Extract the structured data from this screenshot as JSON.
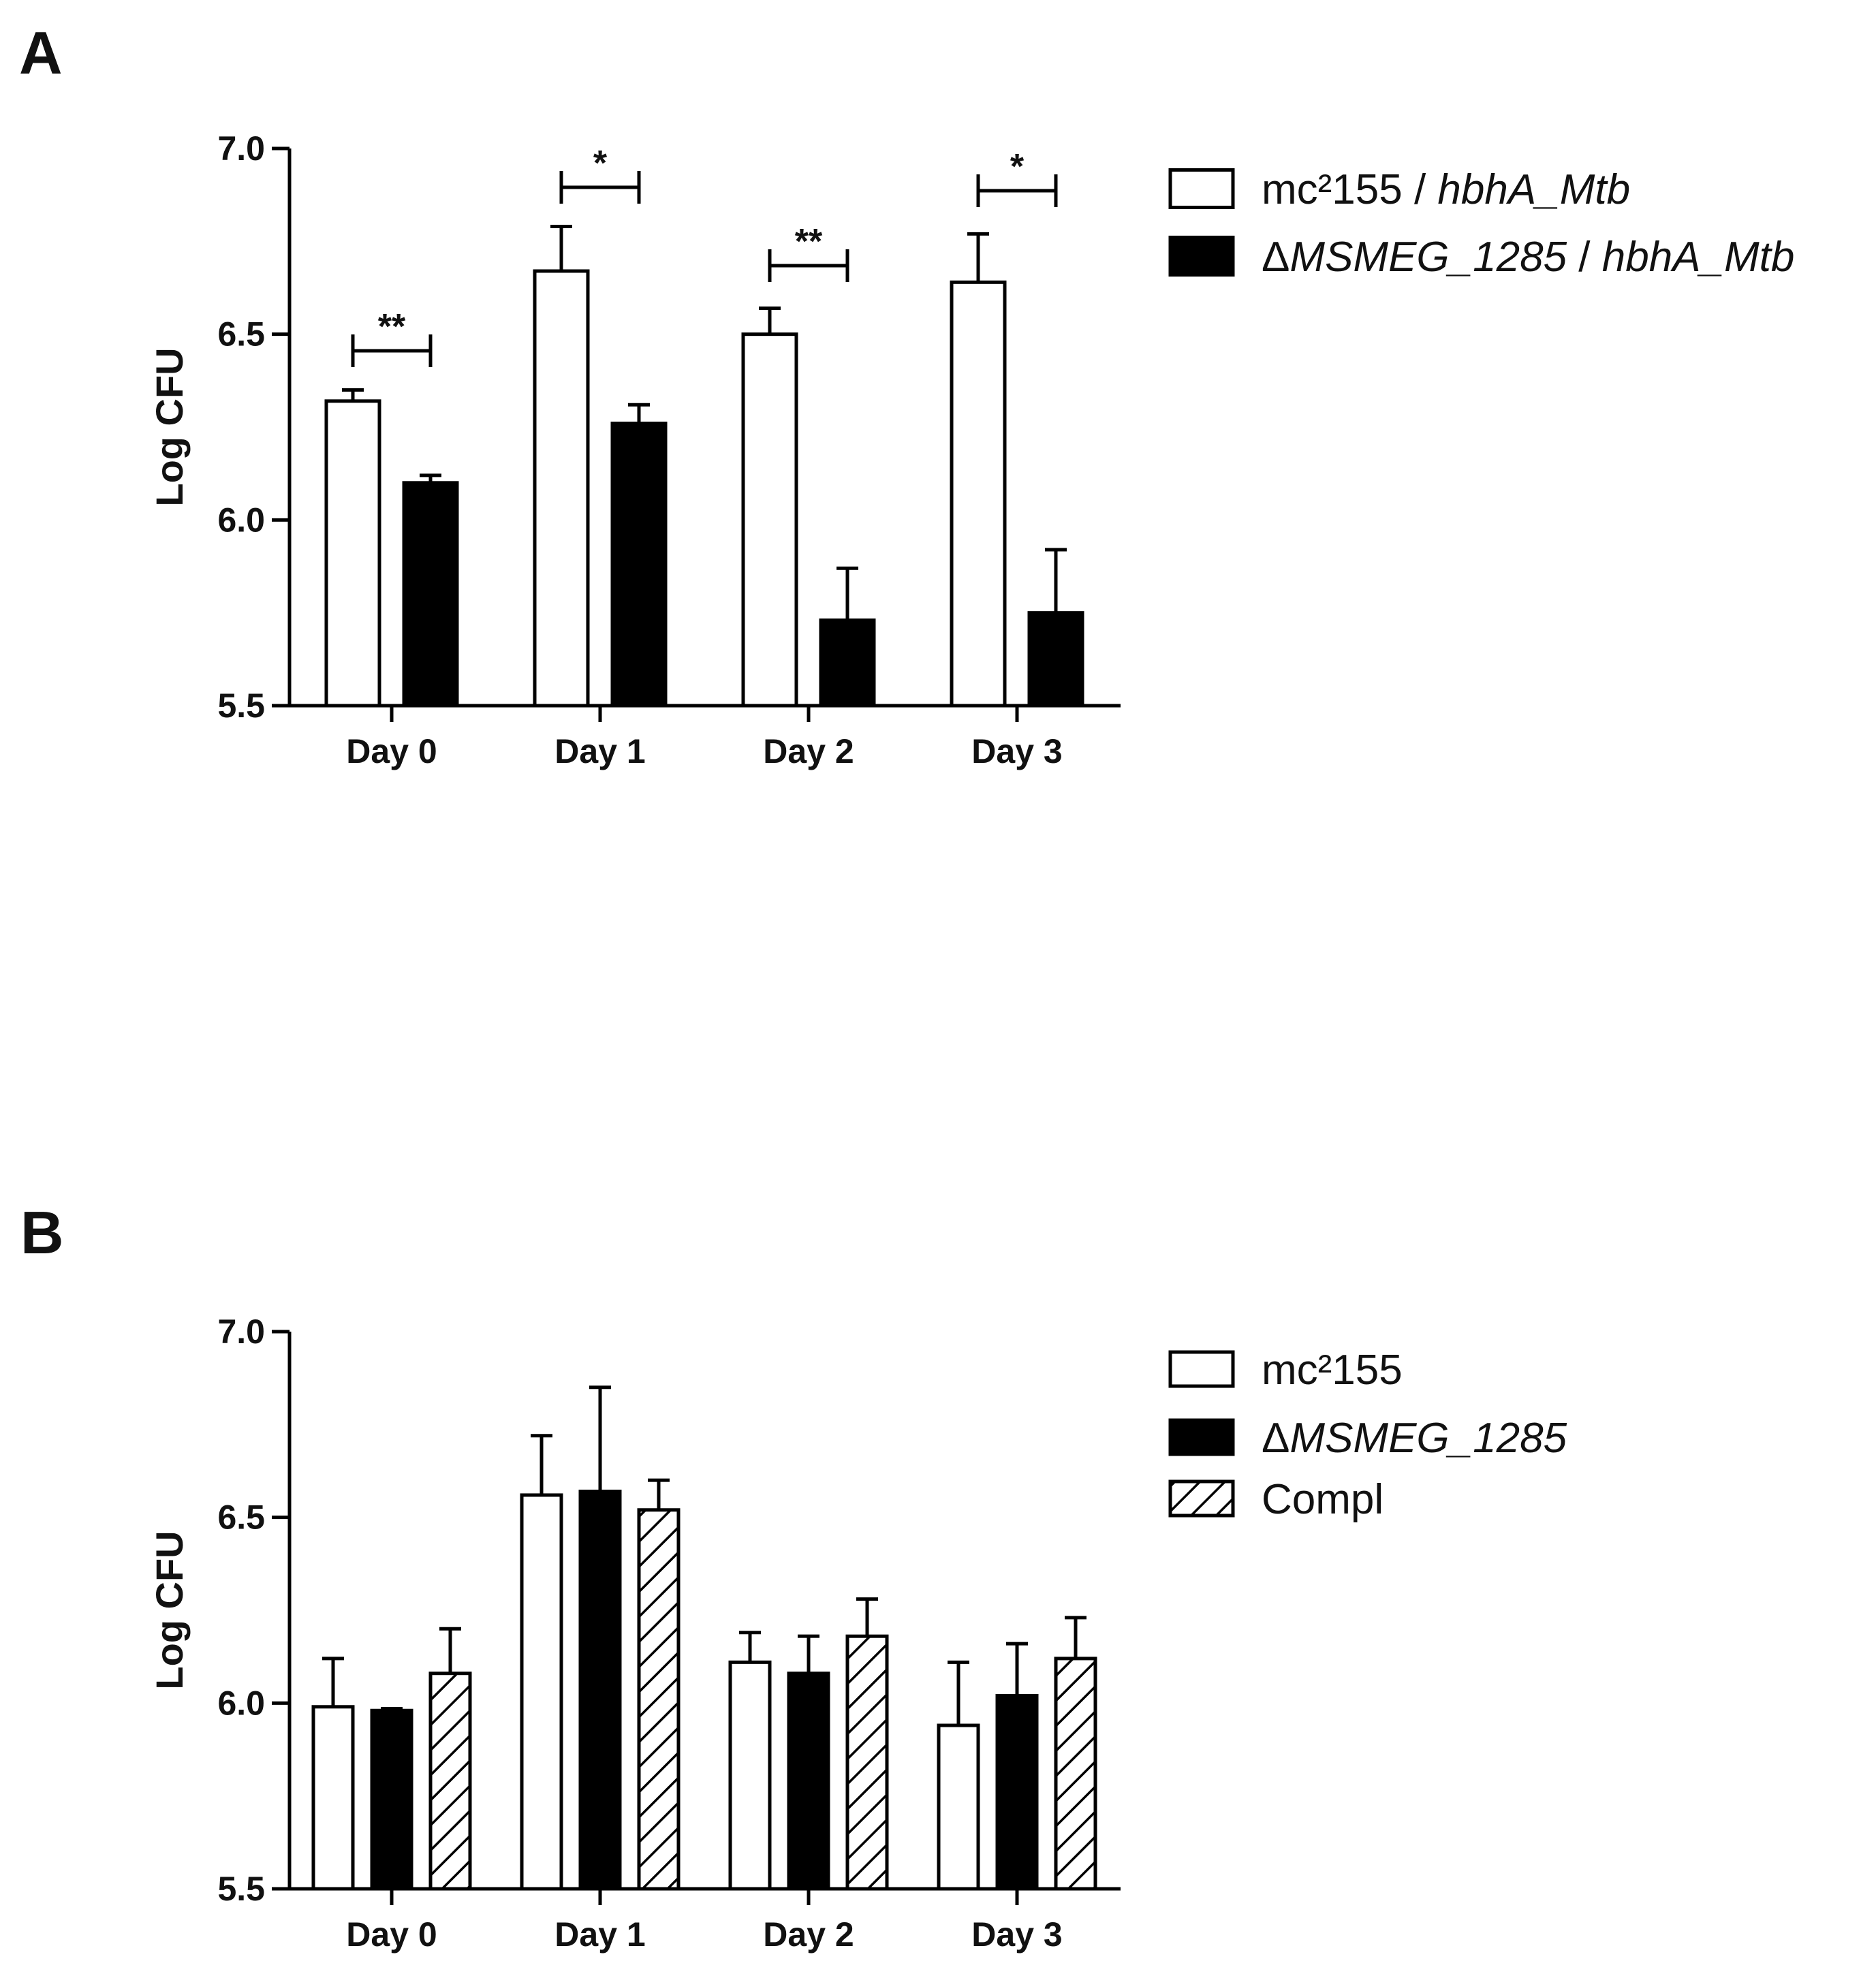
{
  "panels": [
    {
      "letter": "A"
    },
    {
      "letter": "B"
    }
  ],
  "chart_data": [
    {
      "type": "bar",
      "panel": "A",
      "ylabel": "Log CFU",
      "xlabel": "",
      "ylim": [
        5.5,
        7.0
      ],
      "yticks": [
        "5.5",
        "6.0",
        "6.5",
        "7.0"
      ],
      "categories": [
        "Day 0",
        "Day 1",
        "Day 2",
        "Day 3"
      ],
      "series": [
        {
          "name": "mc²155 / hbhA_Mtb",
          "legend_plain": "mc²155 / ",
          "legend_italic": "hbhA_Mtb",
          "fill": "white",
          "values": [
            6.32,
            6.67,
            6.5,
            6.64
          ],
          "errors": [
            0.03,
            0.12,
            0.07,
            0.13
          ]
        },
        {
          "name": "ΔMSMEG_1285 / hbhA_Mtb",
          "legend_delta": "Δ",
          "legend_italic": "MSMEG_1285",
          "legend_plain2": " / ",
          "legend_italic2": "hbhA_Mtb",
          "fill": "black",
          "values": [
            6.1,
            6.26,
            5.73,
            5.75
          ],
          "errors": [
            0.02,
            0.05,
            0.14,
            0.17
          ]
        }
      ],
      "significance": [
        "**",
        "*",
        "**",
        "*"
      ],
      "legend_position": "top-right",
      "grid": false
    },
    {
      "type": "bar",
      "panel": "B",
      "ylabel": "Log CFU",
      "xlabel": "",
      "ylim": [
        5.5,
        7.0
      ],
      "yticks": [
        "5.5",
        "6.0",
        "6.5",
        "7.0"
      ],
      "categories": [
        "Day 0",
        "Day 1",
        "Day 2",
        "Day 3"
      ],
      "series": [
        {
          "name": "mc²155",
          "legend_plain": "mc²155",
          "fill": "white",
          "values": [
            5.99,
            6.56,
            6.11,
            5.94
          ],
          "errors": [
            0.13,
            0.16,
            0.08,
            0.17
          ]
        },
        {
          "name": "ΔMSMEG_1285",
          "legend_delta": "Δ",
          "legend_italic": "MSMEG_1285",
          "fill": "black",
          "values": [
            5.98,
            6.57,
            6.08,
            6.02
          ],
          "errors": [
            0.005,
            0.28,
            0.1,
            0.14
          ]
        },
        {
          "name": "Compl",
          "legend_plain": "Compl",
          "fill": "hatch",
          "values": [
            6.08,
            6.52,
            6.18,
            6.12
          ],
          "errors": [
            0.12,
            0.08,
            0.1,
            0.11
          ]
        }
      ],
      "legend_position": "top-right",
      "grid": false
    }
  ]
}
